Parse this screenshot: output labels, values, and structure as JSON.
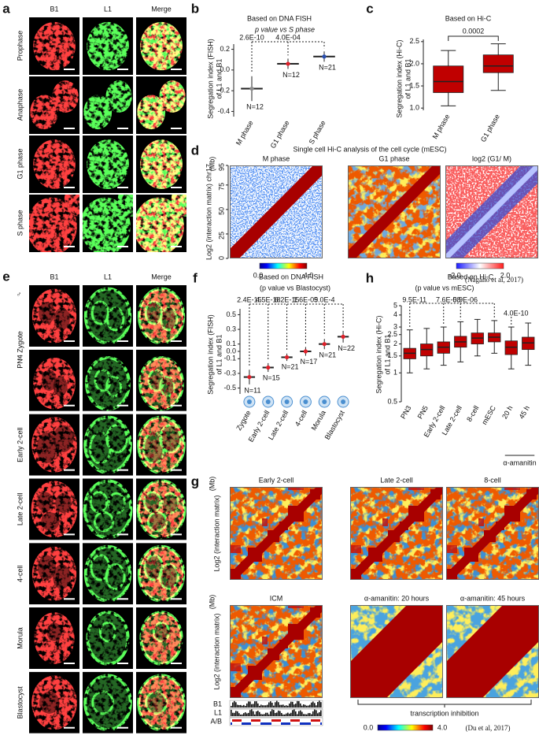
{
  "panels": {
    "a": {
      "letter": "a",
      "columns": [
        "B1",
        "L1",
        "Merge"
      ],
      "rows": [
        "Prophase",
        "Anaphase",
        "G1 phase",
        "S phase"
      ]
    },
    "b": {
      "letter": "b",
      "type": "dot",
      "title": "Based on DNA FISH",
      "subtitle": "p value vs S phase",
      "pvalues": [
        "2.6E-10",
        "4.0E-04"
      ],
      "ylabel": [
        "Segregation index (FISH)",
        "of L1 and B1"
      ],
      "categories": [
        "M phase",
        "G1 phase",
        "S phase"
      ],
      "values": [
        -0.18,
        0.06,
        0.13
      ],
      "errors": [
        0.12,
        0.05,
        0.05
      ],
      "n_labels": [
        "N=12",
        "N=12",
        "N=21"
      ],
      "colors": [
        "#8c8c8c",
        "#e0202a",
        "#2a4fb0"
      ],
      "ylim": [
        -0.45,
        0.25
      ],
      "yticks": [
        -0.4,
        -0.2,
        {
          "value": 0,
          "label": "0.0"
        },
        0.2
      ]
    },
    "c": {
      "letter": "c",
      "type": "box",
      "title": "Based on Hi-C",
      "pvalue": "0.0002",
      "ylabel": [
        "Segregation index (Hi-C)",
        "of L1 and B1"
      ],
      "categories": [
        "M phase",
        "G1 phase"
      ],
      "min": [
        1.05,
        1.4
      ],
      "q1": [
        1.35,
        1.8
      ],
      "median": [
        1.6,
        1.95
      ],
      "q3": [
        1.95,
        2.2
      ],
      "max": [
        2.3,
        2.45
      ],
      "color": "#c00000",
      "ylim": [
        0.95,
        2.55
      ],
      "yticks": [
        {
          "value": 1,
          "label": "1.0"
        },
        1.5,
        {
          "value": 2,
          "label": "2.0"
        },
        2.5
      ]
    },
    "d": {
      "letter": "d",
      "title": "Single cell Hi-C analysis of the cell cycle (mESC)",
      "maps": [
        "M phase",
        "G1 phase",
        "log2 (G1/ M)"
      ],
      "ylabel": "Log2 (interaction matrix) chr17",
      "unit": "(Mb)",
      "ylim": [
        0,
        95
      ],
      "yticks": [
        0,
        25,
        50,
        75,
        95
      ],
      "colorbars": [
        [
          "0.0",
          "4.0"
        ],
        [
          "-2.0",
          "2.0"
        ]
      ],
      "citation": "(Nagano et al, 2017)"
    },
    "e": {
      "letter": "e",
      "columns": [
        "B1",
        "L1",
        "Merge"
      ],
      "symbols": [
        "♂",
        "♀"
      ],
      "rows": [
        "PN4 Zygote",
        "Early 2-cell",
        "Late 2-cell",
        "4-cell",
        "Morula",
        "Blastocyst"
      ]
    },
    "f": {
      "letter": "f",
      "type": "dot",
      "title": "Based on DNA FISH",
      "subtitle": "(p value vs Blastocyst)",
      "pvalues": [
        "2.4E-15",
        "4.5E-18",
        "6.2E-15",
        "1.6E-09",
        "5.0E-4"
      ],
      "ylabel": [
        "Segregation index (FISH)",
        "of L1 and B1"
      ],
      "categories": [
        "Zygote",
        "Early 2-cell",
        "Late 2-cell",
        "4-cell",
        "Morula",
        "Blastocyst"
      ],
      "values": [
        -0.35,
        -0.22,
        -0.08,
        0.0,
        0.1,
        0.2
      ],
      "errors": [
        0.1,
        0.06,
        0.05,
        0.06,
        0.07,
        0.08
      ],
      "n_labels": [
        "N=11",
        "N=15",
        "N=21",
        "N=17",
        "N=21",
        "N=22"
      ],
      "colors": [
        "#e0202a",
        "#e0202a",
        "#e0202a",
        "#e0202a",
        "#e0202a",
        "#e0202a"
      ],
      "ylim": [
        -0.58,
        0.58
      ],
      "yticks": [
        -0.5,
        -0.3,
        -0.1,
        {
          "value": 0,
          "label": "0.0"
        },
        0.1,
        0.3,
        0.5
      ]
    },
    "g": {
      "letter": "g",
      "maps": [
        "Early 2-cell",
        "Late 2-cell",
        "8-cell",
        "ICM",
        "α-amanitin: 20 hours",
        "α-amanitin: 45 hours"
      ],
      "ylabel": "Log2 (interaction matrix)",
      "unit": "(Mb)",
      "tracks": [
        "B1",
        "L1",
        "A/B"
      ],
      "bracket": "transcription inhibition",
      "colorbar": [
        "0.0",
        "4.0"
      ],
      "citation": "(Du et al, 2017)"
    },
    "h": {
      "letter": "h",
      "type": "box",
      "log": true,
      "title": "Based on Hi-C",
      "subtitle": "(p value vs mESC)",
      "pvalues": [
        "9.5E-11",
        "7.6E-08",
        "5.9E-06",
        "4.0E-10"
      ],
      "ylabel": [
        "Segregation index (Hi-C)",
        "of L1 and B1"
      ],
      "categories": [
        "PN3",
        "PN5",
        "Early 2-cell",
        "Late 2-cell",
        "8-cell",
        "mESC",
        "20 h",
        "45 h"
      ],
      "group_label": "α-amanitin",
      "min": [
        1.0,
        1.1,
        1.2,
        1.3,
        1.5,
        1.6,
        1.1,
        1.2
      ],
      "q1": [
        1.4,
        1.5,
        1.6,
        1.85,
        2.0,
        2.1,
        1.55,
        1.75
      ],
      "median": [
        1.6,
        1.75,
        1.85,
        2.1,
        2.3,
        2.35,
        1.85,
        2.05
      ],
      "q3": [
        1.8,
        2.0,
        2.1,
        2.4,
        2.6,
        2.6,
        2.15,
        2.35
      ],
      "max": [
        2.8,
        2.9,
        3.0,
        3.4,
        3.6,
        3.5,
        3.0,
        3.3
      ],
      "color": "#c00000",
      "ylim": [
        0.5,
        5
      ],
      "yticks": [
        0.5,
        1,
        1.5,
        2,
        2.5,
        3,
        4,
        5
      ]
    }
  }
}
